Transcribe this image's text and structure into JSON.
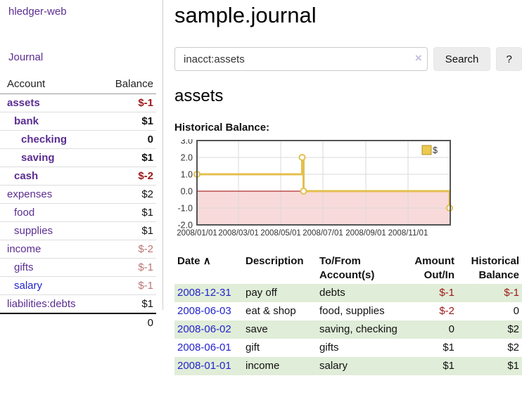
{
  "colors": {
    "accent_purple": "#5b2d91",
    "link_blue": "#2323cf",
    "negative_strong": "#9d1818",
    "negative_soft": "#bd7575",
    "row_green": "#e0edd8",
    "button_gray": "#ececec"
  },
  "sidebar": {
    "brand": "hledger-web",
    "journal_link": "Journal",
    "table": {
      "col_account": "Account",
      "col_balance": "Balance",
      "rows": [
        {
          "name": "assets",
          "balance": "$-1"
        },
        {
          "name": "bank",
          "balance": "$1"
        },
        {
          "name": "checking",
          "balance": "0"
        },
        {
          "name": "saving",
          "balance": "$1"
        },
        {
          "name": "cash",
          "balance": "$-2"
        },
        {
          "name": "expenses",
          "balance": "$2"
        },
        {
          "name": "food",
          "balance": "$1"
        },
        {
          "name": "supplies",
          "balance": "$1"
        },
        {
          "name": "income",
          "balance": "$-2"
        },
        {
          "name": "gifts",
          "balance": "$-1"
        },
        {
          "name": "salary",
          "balance": "$-1"
        },
        {
          "name": "liabilities:debts",
          "balance": "$1"
        }
      ],
      "total": "0"
    }
  },
  "main": {
    "title": "sample.journal",
    "account_heading": "assets",
    "chart_label": "Historical Balance:"
  },
  "search": {
    "query": "inacct:assets",
    "clear_icon": "×",
    "search_button": "Search",
    "help_button": "?"
  },
  "chart_data": {
    "type": "line",
    "title": "Historical Balance",
    "step": true,
    "series": [
      {
        "name": "$",
        "points": [
          [
            "2008-01-01",
            1
          ],
          [
            "2008-06-01",
            2
          ],
          [
            "2008-06-03",
            0
          ],
          [
            "2008-12-31",
            -1
          ]
        ]
      }
    ],
    "x_domain": [
      "2008-01-01",
      "2009-01-01"
    ],
    "x_ticks": [
      {
        "pos": "2008-01-01",
        "label": "2008/01/01"
      },
      {
        "pos": "2008-03-01",
        "label": "2008/03/01"
      },
      {
        "pos": "2008-05-01",
        "label": "2008/05/01"
      },
      {
        "pos": "2008-07-01",
        "label": "2008/07/01"
      },
      {
        "pos": "2008-09-01",
        "label": "2008/09/01"
      },
      {
        "pos": "2008-11-01",
        "label": "2008/11/01"
      }
    ],
    "ylim": [
      -2,
      3
    ],
    "y_ticks": [
      3.0,
      2.0,
      1.0,
      0.0,
      -1.0,
      -2.0
    ],
    "grid": true,
    "legend": {
      "label": "$",
      "position": "top-right"
    },
    "line_color": "#e4bf4d",
    "marker_fill": "#ffffff",
    "negative_region_color": "#f9dada",
    "zero_line_color": "#990000",
    "border_color": "#545454"
  },
  "transactions": {
    "headers": {
      "date": "Date",
      "sort_icon": "∧",
      "description": "Description",
      "tofrom": "To/From Account(s)",
      "amount": "Amount Out/In",
      "balance": "Historical Balance"
    },
    "rows": [
      {
        "date": "2008-12-31",
        "description": "pay off",
        "accounts": "debts",
        "amount": "$-1",
        "balance": "$-1"
      },
      {
        "date": "2008-06-03",
        "description": "eat & shop",
        "accounts": "food, supplies",
        "amount": "$-2",
        "balance": "0"
      },
      {
        "date": "2008-06-02",
        "description": "save",
        "accounts": "saving, checking",
        "amount": "0",
        "balance": "$2"
      },
      {
        "date": "2008-06-01",
        "description": "gift",
        "accounts": "gifts",
        "amount": "$1",
        "balance": "$2"
      },
      {
        "date": "2008-01-01",
        "description": "income",
        "accounts": "salary",
        "amount": "$1",
        "balance": "$1"
      }
    ]
  }
}
